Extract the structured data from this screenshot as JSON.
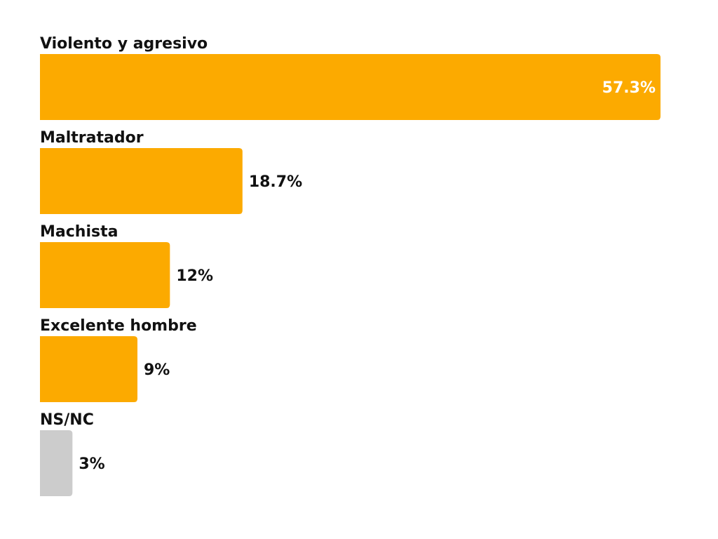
{
  "chart_data": {
    "type": "bar",
    "orientation": "horizontal",
    "categories": [
      "Violento y agresivo",
      "Maltratador",
      "Machista",
      "Excelente hombre",
      "NS/NC"
    ],
    "values": [
      57.3,
      18.7,
      12,
      9,
      3
    ],
    "value_labels": [
      "57.3%",
      "18.7%",
      "12%",
      "9%",
      "3%"
    ],
    "xlim": [
      0,
      57.3
    ],
    "grid": false,
    "legend": "none",
    "colors": {
      "bar": "#FCAA00",
      "bar_na": "#CCCCCC",
      "label_on_bar": "#FFFFFF",
      "label_outside": "#111111",
      "category_text": "#111111"
    }
  }
}
